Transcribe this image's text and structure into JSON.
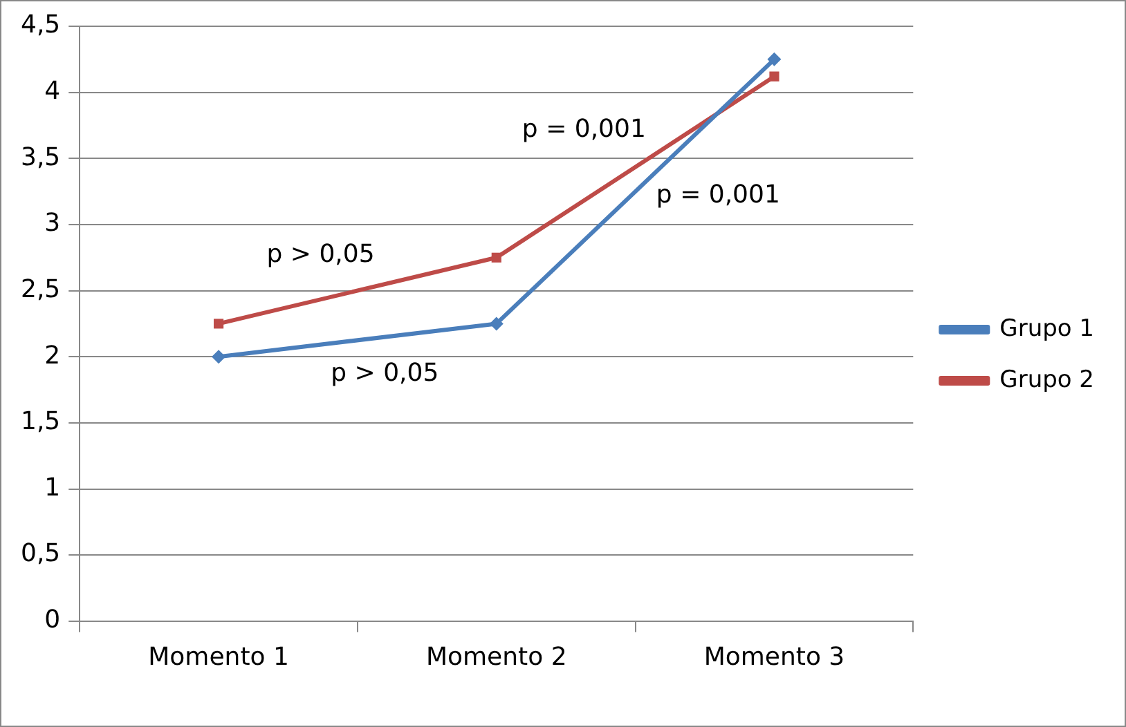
{
  "chart_data": {
    "type": "line",
    "categories": [
      "Momento 1",
      "Momento 2",
      "Momento 3"
    ],
    "series": [
      {
        "name": "Grupo 1",
        "color": "#4a7ebb",
        "values": [
          2,
          2.25,
          4.25
        ],
        "marker": "diamond"
      },
      {
        "name": "Grupo 2",
        "color": "#be4b48",
        "values": [
          2.25,
          2.75,
          4.12
        ],
        "marker": "square"
      }
    ],
    "ylim": [
      0,
      4.5
    ],
    "yticks": [
      0,
      {
        "value": 0.5,
        "label": "0,5"
      },
      1,
      {
        "value": 1.5,
        "label": "1,5"
      },
      2,
      {
        "value": 2.5,
        "label": "2,5"
      },
      3,
      {
        "value": 3.5,
        "label": "3,5"
      },
      4,
      {
        "value": 4.5,
        "label": "4,5"
      }
    ],
    "grid": "y",
    "legend": "right",
    "line_style": "solid",
    "annotations": [
      "p > 0,05",
      "p > 0,05",
      "p = 0,001",
      "p = 0,001"
    ]
  }
}
